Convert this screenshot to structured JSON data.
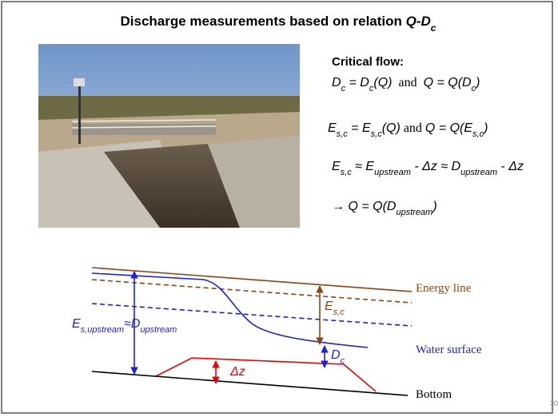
{
  "title": [
    "Discharge measurements based on relation ",
    "Q-D",
    "c"
  ],
  "critical_flow": "Critical flow:",
  "eq1": [
    "D",
    "c",
    " = D",
    "c",
    "(Q)",
    "  and  ",
    "Q = Q(D",
    "c",
    ")"
  ],
  "eq2": [
    "E",
    "s,c",
    " = E",
    "s,c",
    "(Q)",
    " and ",
    "Q = Q(E",
    "s,c",
    ")"
  ],
  "eq3": [
    "E",
    "s,c",
    " ≈ E",
    "upstream",
    " - Δz ≈ D",
    "upstream",
    " - Δz"
  ],
  "eq4": [
    "→ Q = Q(D",
    "upstream",
    ")"
  ],
  "diagram": {
    "energy_line": "Energy line",
    "water_surface": "Water surface",
    "bottom": "Bottom",
    "upstream_label": [
      "E",
      "s,upstream",
      "≈D",
      "upstream"
    ],
    "esc_label": [
      "E",
      "s,c"
    ],
    "dc_label": [
      "D",
      "c"
    ],
    "dz_label": "Δz"
  },
  "page_number": "30"
}
